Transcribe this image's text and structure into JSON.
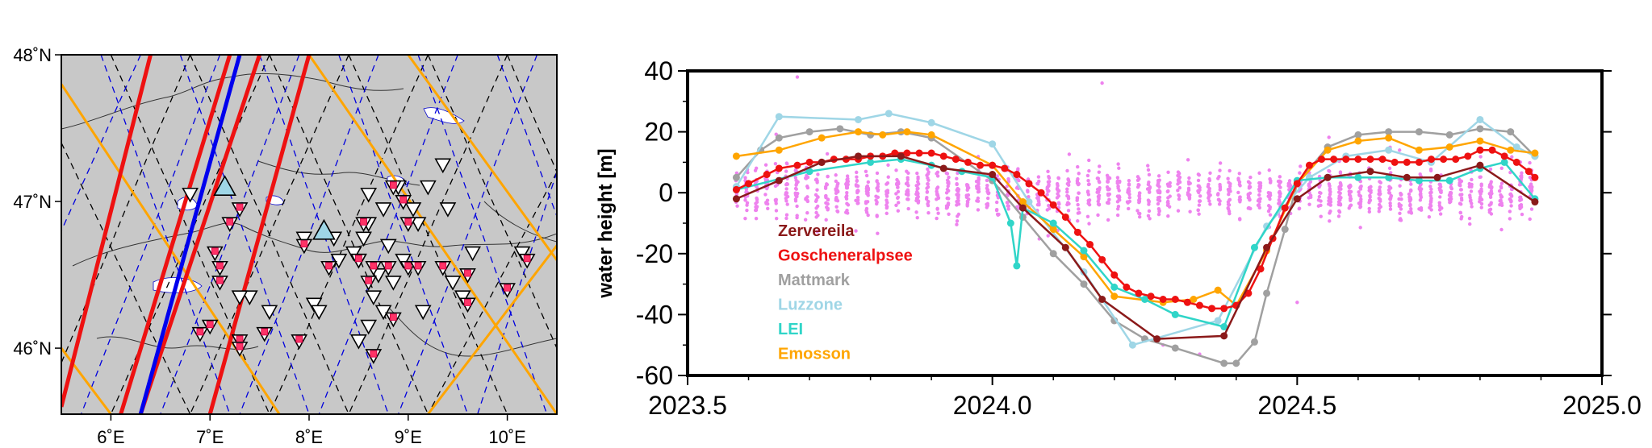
{
  "chart_data": [
    {
      "type": "map",
      "panel": "left",
      "title": "",
      "lon_range": [
        5.5,
        10.5
      ],
      "lat_range": [
        45.55,
        48.0
      ],
      "x_ticks": [
        {
          "value": 6,
          "label": "6˚E"
        },
        {
          "value": 7,
          "label": "7˚E"
        },
        {
          "value": 8,
          "label": "8˚E"
        },
        {
          "value": 9,
          "label": "9˚E"
        },
        {
          "value": 10,
          "label": "10˚E"
        }
      ],
      "y_ticks": [
        {
          "value": 48,
          "label": "48˚N"
        },
        {
          "value": 47,
          "label": "47˚N"
        },
        {
          "value": 46,
          "label": "46˚N"
        }
      ],
      "background_color": "#c8c8c8",
      "tracks": {
        "black_dashed": {
          "color": "#000000",
          "style": "dashed",
          "lines": [
            [
              6.8,
              48.0,
              5.5,
              45.9
            ],
            [
              7.6,
              48.0,
              6.0,
              45.55
            ],
            [
              8.4,
              48.0,
              6.8,
              45.55
            ],
            [
              9.2,
              48.0,
              7.6,
              45.55
            ],
            [
              10.0,
              48.0,
              8.4,
              45.55
            ],
            [
              10.5,
              47.2,
              9.2,
              45.55
            ],
            [
              6.0,
              48.0,
              7.6,
              45.55
            ],
            [
              6.8,
              48.0,
              8.4,
              45.55
            ],
            [
              7.6,
              48.0,
              9.2,
              45.55
            ],
            [
              8.4,
              48.0,
              10.0,
              45.55
            ],
            [
              9.2,
              48.0,
              10.5,
              46.0
            ],
            [
              5.5,
              47.4,
              6.8,
              45.55
            ],
            [
              10.0,
              48.0,
              10.5,
              47.2
            ]
          ]
        },
        "blue_dashed": {
          "color": "#0000dd",
          "style": "dashed",
          "lines": [
            [
              6.3,
              48.0,
              5.5,
              46.8
            ],
            [
              7.1,
              48.0,
              5.7,
              45.55
            ],
            [
              7.9,
              48.0,
              6.5,
              45.55
            ],
            [
              8.7,
              48.0,
              7.3,
              45.55
            ],
            [
              9.5,
              48.0,
              8.1,
              45.55
            ],
            [
              10.3,
              48.0,
              8.9,
              45.55
            ],
            [
              10.5,
              47.2,
              9.7,
              45.55
            ],
            [
              5.9,
              48.0,
              7.2,
              45.55
            ],
            [
              6.7,
              48.0,
              8.0,
              45.55
            ],
            [
              7.5,
              48.0,
              8.8,
              45.55
            ],
            [
              8.3,
              48.0,
              9.6,
              45.55
            ],
            [
              9.1,
              48.0,
              10.4,
              45.55
            ],
            [
              9.9,
              48.0,
              10.5,
              46.9
            ]
          ]
        },
        "orange": {
          "color": "#ffa500",
          "style": "solid",
          "lines": [
            [
              5.5,
              47.8,
              7.7,
              45.55
            ],
            [
              8.0,
              48.0,
              10.5,
              45.55
            ],
            [
              9.0,
              48.0,
              10.5,
              46.6
            ],
            [
              9.2,
              45.55,
              10.5,
              46.7
            ],
            [
              5.5,
              46.0,
              6.0,
              45.55
            ]
          ]
        },
        "red": {
          "color": "#ee1111",
          "style": "solid",
          "lines": [
            [
              6.4,
              48.0,
              5.5,
              45.6
            ],
            [
              7.2,
              48.0,
              6.1,
              45.55
            ],
            [
              7.5,
              48.0,
              6.3,
              45.55
            ],
            [
              8.0,
              48.0,
              7.0,
              45.55
            ]
          ]
        },
        "blue": {
          "color": "#0000ee",
          "style": "solid",
          "lines": [
            [
              7.3,
              48.0,
              6.3,
              45.55
            ]
          ]
        }
      },
      "stations_black": [
        [
          6.8,
          47.05
        ],
        [
          7.4,
          46.35
        ],
        [
          7.3,
          46.35
        ],
        [
          7.6,
          46.25
        ],
        [
          8.05,
          46.3
        ],
        [
          8.1,
          46.25
        ],
        [
          8.6,
          47.05
        ],
        [
          8.75,
          46.95
        ],
        [
          8.6,
          46.85
        ],
        [
          8.9,
          47.1
        ],
        [
          9.05,
          46.95
        ],
        [
          9.1,
          46.85
        ],
        [
          9.4,
          46.95
        ],
        [
          9.2,
          47.1
        ],
        [
          9.35,
          47.25
        ],
        [
          8.7,
          46.5
        ],
        [
          8.95,
          46.6
        ],
        [
          8.8,
          46.7
        ],
        [
          8.55,
          46.75
        ],
        [
          8.45,
          46.65
        ],
        [
          8.5,
          46.6
        ],
        [
          8.3,
          46.6
        ],
        [
          8.25,
          46.75
        ],
        [
          7.95,
          46.75
        ],
        [
          8.65,
          46.35
        ],
        [
          8.6,
          46.15
        ],
        [
          8.5,
          46.05
        ],
        [
          9.15,
          46.25
        ],
        [
          9.65,
          46.65
        ],
        [
          9.45,
          46.45
        ],
        [
          9.55,
          46.35
        ],
        [
          10.15,
          46.65
        ],
        [
          8.75,
          46.25
        ],
        [
          8.85,
          46.45
        ]
      ],
      "stations_red": [
        [
          7.05,
          46.65
        ],
        [
          7.2,
          46.85
        ],
        [
          7.3,
          46.95
        ],
        [
          7.1,
          46.45
        ],
        [
          7.1,
          46.55
        ],
        [
          6.9,
          46.1
        ],
        [
          7.3,
          46.05
        ],
        [
          7.55,
          46.1
        ],
        [
          7.9,
          46.05
        ],
        [
          7.95,
          46.7
        ],
        [
          8.2,
          46.55
        ],
        [
          8.5,
          46.6
        ],
        [
          8.6,
          46.45
        ],
        [
          8.85,
          47.1
        ],
        [
          8.95,
          47.0
        ],
        [
          9.0,
          46.85
        ],
        [
          8.65,
          46.55
        ],
        [
          8.8,
          46.55
        ],
        [
          9.0,
          46.55
        ],
        [
          9.1,
          46.55
        ],
        [
          9.35,
          46.55
        ],
        [
          9.6,
          46.5
        ],
        [
          9.6,
          46.3
        ],
        [
          10.0,
          46.4
        ],
        [
          10.2,
          46.6
        ],
        [
          8.85,
          46.2
        ],
        [
          8.65,
          45.95
        ],
        [
          7.3,
          46.0
        ],
        [
          8.55,
          46.85
        ],
        [
          7.0,
          46.15
        ]
      ],
      "stations_blue": [
        [
          7.15,
          47.1
        ],
        [
          8.15,
          46.8
        ]
      ]
    },
    {
      "type": "line",
      "panel": "right",
      "title": "",
      "xlabel": "",
      "ylabel": "water height [m]",
      "xlim": [
        2023.5,
        2025.0
      ],
      "ylim": [
        -60,
        40
      ],
      "x_ticks": [
        {
          "value": 2023.5,
          "label": "2023.5"
        },
        {
          "value": 2024.0,
          "label": "2024.0"
        },
        {
          "value": 2024.5,
          "label": "2024.5"
        },
        {
          "value": 2025.0,
          "label": "2025.0"
        }
      ],
      "y_ticks": [
        {
          "value": 40,
          "label": "40"
        },
        {
          "value": 20,
          "label": "20"
        },
        {
          "value": 0,
          "label": "0"
        },
        {
          "value": -20,
          "label": "-20"
        },
        {
          "value": -40,
          "label": "-40"
        },
        {
          "value": -60,
          "label": "-60"
        }
      ],
      "legend_position": "lower-left",
      "series": [
        {
          "name": "Zervereila",
          "color": "#8b1a1a",
          "x": [
            2023.58,
            2023.65,
            2023.72,
            2023.78,
            2023.85,
            2023.92,
            2024.0,
            2024.05,
            2024.12,
            2024.18,
            2024.27,
            2024.38,
            2024.45,
            2024.5,
            2024.55,
            2024.62,
            2024.68,
            2024.73,
            2024.8,
            2024.89
          ],
          "y": [
            -2,
            4,
            10,
            12,
            12,
            8,
            6,
            -5,
            -18,
            -35,
            -48,
            -47,
            -18,
            -2,
            5,
            7,
            5,
            5,
            9,
            -3
          ]
        },
        {
          "name": "Goscheneralpsee",
          "color": "#ee1111",
          "x": [
            2023.58,
            2023.6,
            2023.63,
            2023.65,
            2023.68,
            2023.7,
            2023.72,
            2023.74,
            2023.76,
            2023.78,
            2023.8,
            2023.82,
            2023.84,
            2023.86,
            2023.88,
            2023.9,
            2023.92,
            2023.94,
            2023.96,
            2023.98,
            2024.0,
            2024.02,
            2024.04,
            2024.06,
            2024.08,
            2024.1,
            2024.12,
            2024.14,
            2024.16,
            2024.18,
            2024.2,
            2024.22,
            2024.24,
            2024.26,
            2024.28,
            2024.3,
            2024.32,
            2024.34,
            2024.36,
            2024.38,
            2024.4,
            2024.42,
            2024.44,
            2024.46,
            2024.48,
            2024.5,
            2024.52,
            2024.54,
            2024.56,
            2024.58,
            2024.6,
            2024.62,
            2024.64,
            2024.66,
            2024.68,
            2024.7,
            2024.72,
            2024.74,
            2024.76,
            2024.78,
            2024.8,
            2024.82,
            2024.84,
            2024.86,
            2024.88,
            2024.89
          ],
          "y": [
            1,
            3,
            6,
            8,
            9,
            10,
            10,
            11,
            11,
            11,
            12,
            12,
            13,
            13,
            13,
            13,
            12,
            11,
            10,
            9,
            9,
            8,
            6,
            3,
            0,
            -4,
            -8,
            -13,
            -17,
            -22,
            -27,
            -31,
            -33,
            -34,
            -35,
            -35,
            -36,
            -37,
            -38,
            -38,
            -37,
            -33,
            -25,
            -15,
            -5,
            3,
            9,
            11,
            11,
            11,
            11,
            11,
            11,
            10,
            10,
            10,
            11,
            11,
            11,
            12,
            14,
            14,
            12,
            10,
            7,
            5
          ]
        },
        {
          "name": "Mattmark",
          "color": "#a0a0a0",
          "x": [
            2023.58,
            2023.62,
            2023.65,
            2023.7,
            2023.75,
            2023.8,
            2023.85,
            2023.9,
            2024.0,
            2024.05,
            2024.1,
            2024.15,
            2024.2,
            2024.25,
            2024.3,
            2024.38,
            2024.4,
            2024.43,
            2024.45,
            2024.48,
            2024.5,
            2024.55,
            2024.6,
            2024.65,
            2024.7,
            2024.75,
            2024.8,
            2024.85,
            2024.89
          ],
          "y": [
            5,
            14,
            18,
            20,
            21,
            19,
            20,
            18,
            4,
            -8,
            -20,
            -30,
            -42,
            -48,
            -51,
            -56,
            -56,
            -49,
            -33,
            -12,
            3,
            15,
            19,
            20,
            20,
            19,
            21,
            20,
            12
          ]
        },
        {
          "name": "Luzzone",
          "color": "#9fd6e6",
          "x": [
            2023.58,
            2023.65,
            2023.78,
            2023.83,
            2023.9,
            2024.0,
            2024.06,
            2024.15,
            2024.23,
            2024.37,
            2024.45,
            2024.52,
            2024.58,
            2024.65,
            2024.72,
            2024.8,
            2024.86,
            2024.89
          ],
          "y": [
            2,
            25,
            24,
            26,
            23,
            16,
            -3,
            -26,
            -50,
            -42,
            -11,
            5,
            12,
            14,
            10,
            24,
            15,
            12
          ]
        },
        {
          "name": "LEI",
          "color": "#30d5c8",
          "x": [
            2023.58,
            2023.7,
            2023.8,
            2023.85,
            2023.9,
            2023.95,
            2024.0,
            2024.03,
            2024.04,
            2024.05,
            2024.1,
            2024.15,
            2024.2,
            2024.25,
            2024.3,
            2024.38,
            2024.43,
            2024.5,
            2024.55,
            2024.6,
            2024.65,
            2024.7,
            2024.75,
            2024.8,
            2024.84,
            2024.89
          ],
          "y": [
            1,
            7,
            10,
            11,
            9,
            7,
            5,
            -10,
            -24,
            -5,
            -10,
            -19,
            -31,
            -35,
            -40,
            -44,
            -18,
            4,
            5,
            5,
            5,
            4,
            4,
            8,
            10,
            -2
          ]
        },
        {
          "name": "Emosson",
          "color": "#ffa500",
          "x": [
            2023.58,
            2023.65,
            2023.72,
            2023.78,
            2023.82,
            2023.86,
            2023.9,
            2024.0,
            2024.05,
            2024.1,
            2024.15,
            2024.2,
            2024.28,
            2024.33,
            2024.37,
            2024.4,
            2024.45,
            2024.5,
            2024.55,
            2024.6,
            2024.65,
            2024.7,
            2024.75,
            2024.8,
            2024.85,
            2024.89
          ],
          "y": [
            12,
            14,
            18,
            20,
            19,
            20,
            19,
            9,
            -3,
            -12,
            -21,
            -34,
            -36,
            -35,
            -32,
            -37,
            -19,
            3,
            14,
            17,
            18,
            14,
            15,
            17,
            14,
            13
          ]
        }
      ],
      "scatter_series": {
        "color": "#ee82ee",
        "x_range": [
          2023.58,
          2024.89
        ],
        "y_center": 0,
        "spread": 8,
        "outliers": [
          [
            2023.68,
            38
          ],
          [
            2024.18,
            36
          ],
          [
            2024.28,
            -50
          ],
          [
            2024.34,
            -53
          ],
          [
            2024.5,
            -36
          ]
        ]
      }
    }
  ]
}
